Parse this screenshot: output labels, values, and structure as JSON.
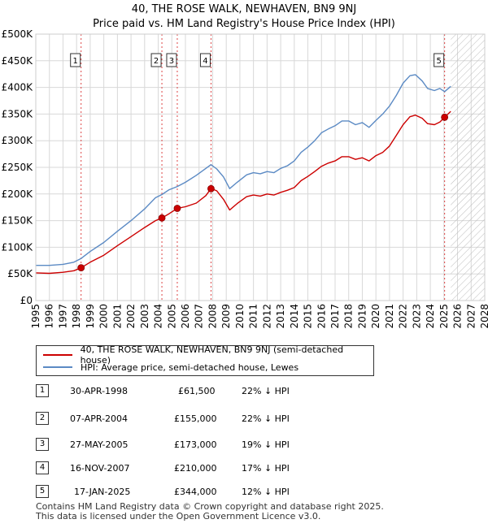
{
  "title_line1": "40, THE ROSE WALK, NEWHAVEN, BN9 9NJ",
  "title_line2": "Price paid vs. HM Land Registry's House Price Index (HPI)",
  "chart_data": {
    "type": "line",
    "title": "40, THE ROSE WALK, NEWHAVEN, BN9 9NJ",
    "subtitle": "Price paid vs. HM Land Registry's House Price Index (HPI)",
    "xlabel": "",
    "ylabel": "",
    "xlim": [
      1995,
      2028
    ],
    "ylim": [
      0,
      500000
    ],
    "x_ticks": [
      1995,
      1996,
      1997,
      1998,
      1999,
      2000,
      2001,
      2002,
      2003,
      2004,
      2005,
      2006,
      2007,
      2008,
      2009,
      2010,
      2011,
      2012,
      2013,
      2014,
      2015,
      2016,
      2017,
      2018,
      2019,
      2020,
      2021,
      2022,
      2023,
      2024,
      2025,
      2026,
      2027,
      2028
    ],
    "y_ticks": [
      {
        "value": 0,
        "label": "£0"
      },
      {
        "value": 50000,
        "label": "£50K"
      },
      {
        "value": 100000,
        "label": "£100K"
      },
      {
        "value": 150000,
        "label": "£150K"
      },
      {
        "value": 200000,
        "label": "£200K"
      },
      {
        "value": 250000,
        "label": "£250K"
      },
      {
        "value": 300000,
        "label": "£300K"
      },
      {
        "value": 350000,
        "label": "£350K"
      },
      {
        "value": 400000,
        "label": "£400K"
      },
      {
        "value": 450000,
        "label": "£450K"
      },
      {
        "value": 500000,
        "label": "£500K"
      }
    ],
    "grid": true,
    "future_hatch_from": 2025.5,
    "series": [
      {
        "name": "40, THE ROSE WALK, NEWHAVEN, BN9 9NJ (semi-detached house)",
        "color": "#cc0000",
        "x": [
          1995,
          1996,
          1997,
          1997.8,
          1998.33,
          1999,
          2000,
          2001,
          2002,
          2003,
          2003.8,
          2004.27,
          2004.8,
          2005.4,
          2006,
          2006.8,
          2007.5,
          2007.88,
          2008.3,
          2008.8,
          2009.25,
          2009.8,
          2010.5,
          2011,
          2011.5,
          2012,
          2012.5,
          2013,
          2013.5,
          2014,
          2014.5,
          2015,
          2015.5,
          2016,
          2016.5,
          2017,
          2017.5,
          2018,
          2018.5,
          2019,
          2019.5,
          2020,
          2020.5,
          2021,
          2021.5,
          2022,
          2022.5,
          2022.9,
          2023.4,
          2023.8,
          2024.3,
          2024.7,
          2025.05,
          2025.5
        ],
        "values": [
          52000,
          51000,
          53000,
          56000,
          61500,
          72000,
          85000,
          103000,
          120000,
          137000,
          150000,
          155000,
          163000,
          173000,
          176000,
          183000,
          197000,
          210000,
          206000,
          190000,
          170000,
          182000,
          195000,
          198000,
          196000,
          200000,
          198000,
          203000,
          207000,
          212000,
          225000,
          233000,
          242000,
          252000,
          258000,
          262000,
          270000,
          270000,
          265000,
          268000,
          262000,
          272000,
          278000,
          290000,
          310000,
          330000,
          345000,
          348000,
          342000,
          332000,
          330000,
          335000,
          344000,
          355000
        ]
      },
      {
        "name": "HPI: Average price, semi-detached house, Lewes",
        "color": "#5b8ac4",
        "x": [
          1995,
          1996,
          1997,
          1997.8,
          1998.33,
          1999,
          2000,
          2001,
          2002,
          2003,
          2003.8,
          2004.27,
          2004.8,
          2005.4,
          2006,
          2006.8,
          2007.5,
          2007.88,
          2008.3,
          2008.8,
          2009.25,
          2009.8,
          2010.5,
          2011,
          2011.5,
          2012,
          2012.5,
          2013,
          2013.5,
          2014,
          2014.5,
          2015,
          2015.5,
          2016,
          2016.5,
          2017,
          2017.5,
          2018,
          2018.5,
          2019,
          2019.5,
          2020,
          2020.5,
          2021,
          2021.5,
          2022,
          2022.5,
          2022.9,
          2023.4,
          2023.8,
          2024.3,
          2024.7,
          2025.05,
          2025.5
        ],
        "values": [
          66000,
          66000,
          68000,
          72000,
          79000,
          92000,
          109000,
          130000,
          150000,
          172000,
          193000,
          199000,
          208000,
          214000,
          222000,
          235000,
          248000,
          255000,
          247000,
          232000,
          210000,
          222000,
          236000,
          240000,
          238000,
          242000,
          240000,
          248000,
          253000,
          262000,
          278000,
          288000,
          300000,
          315000,
          322000,
          328000,
          337000,
          337000,
          330000,
          334000,
          325000,
          338000,
          350000,
          365000,
          385000,
          408000,
          422000,
          424000,
          412000,
          398000,
          394000,
          398000,
          392000,
          402000
        ]
      }
    ],
    "sale_points": [
      {
        "n": "1",
        "x": 1998.33,
        "value": 61500
      },
      {
        "n": "2",
        "x": 2004.27,
        "value": 155000
      },
      {
        "n": "3",
        "x": 2005.4,
        "value": 173000
      },
      {
        "n": "4",
        "x": 2007.88,
        "value": 210000
      },
      {
        "n": "5",
        "x": 2025.05,
        "value": 344000
      }
    ]
  },
  "legend": {
    "red_label": "40, THE ROSE WALK, NEWHAVEN, BN9 9NJ (semi-detached house)",
    "blue_label": "HPI: Average price, semi-detached house, Lewes",
    "red_color": "#cc0000",
    "blue_color": "#5b8ac4"
  },
  "sales": [
    {
      "n": "1",
      "date": "30-APR-1998",
      "price": "£61,500",
      "hpi": "22% ↓ HPI"
    },
    {
      "n": "2",
      "date": "07-APR-2004",
      "price": "£155,000",
      "hpi": "22% ↓ HPI"
    },
    {
      "n": "3",
      "date": "27-MAY-2005",
      "price": "£173,000",
      "hpi": "19% ↓ HPI"
    },
    {
      "n": "4",
      "date": "16-NOV-2007",
      "price": "£210,000",
      "hpi": "17% ↓ HPI"
    },
    {
      "n": "5",
      "date": "17-JAN-2025",
      "price": "£344,000",
      "hpi": "12% ↓ HPI"
    }
  ],
  "footer_line1": "Contains HM Land Registry data © Crown copyright and database right 2025.",
  "footer_line2": "This data is licensed under the Open Government Licence v3.0."
}
